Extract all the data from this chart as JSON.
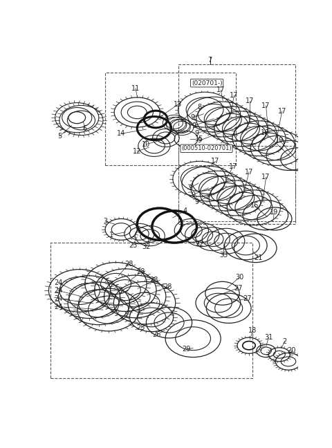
{
  "bg_color": "#ffffff",
  "line_color": "#222222",
  "dashed_box_color": "#555555",
  "label_color": "#000000",
  "fig_width": 4.8,
  "fig_height": 6.48,
  "dpi": 100
}
